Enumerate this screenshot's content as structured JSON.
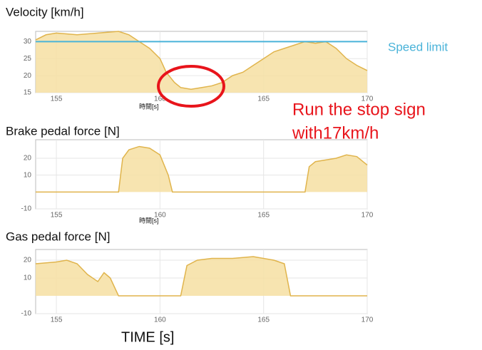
{
  "chart_data": [
    {
      "type": "area",
      "title": "Velocity  [km/h]",
      "x_label": "時間[s]",
      "xlim": [
        154,
        170
      ],
      "xticks": [
        155,
        160,
        165,
        170
      ],
      "ylim": [
        15,
        33
      ],
      "yticks": [
        15,
        20,
        25,
        30
      ],
      "grid": true,
      "series": [
        {
          "color": "#e0b44c",
          "x": [
            154,
            154.5,
            155,
            156,
            157,
            158,
            158.5,
            159,
            159.5,
            160,
            160.3,
            160.7,
            161,
            161.5,
            162,
            162.5,
            163,
            163.5,
            164,
            164.5,
            165,
            165.5,
            166,
            166.5,
            167,
            167.5,
            168,
            168.5,
            169,
            169.5,
            170
          ],
          "values": [
            30.5,
            32,
            32.5,
            32,
            32.5,
            33,
            32,
            30,
            28,
            25,
            21,
            18,
            16.5,
            16,
            16.5,
            17,
            18,
            20,
            21,
            23,
            25,
            27,
            28,
            29,
            30,
            29.5,
            30,
            28,
            25,
            23,
            21.5
          ]
        }
      ],
      "reference_line": {
        "value": 30,
        "label": "Speed limit",
        "color": "#4ab3d9"
      },
      "annotations": [
        "Run the stop sign",
        "with17km/h"
      ]
    },
    {
      "type": "area",
      "title": "Brake pedal force  [N]",
      "x_label": "時間[s]",
      "xlim": [
        154,
        170
      ],
      "xticks": [
        155,
        160,
        165,
        170
      ],
      "ylim": [
        -10,
        31
      ],
      "yticks": [
        -10,
        10,
        20
      ],
      "grid": true,
      "series": [
        {
          "color": "#e0b44c",
          "x": [
            154,
            158,
            158.2,
            158.5,
            159,
            159.5,
            160,
            160.4,
            160.6,
            167,
            167.2,
            167.5,
            168,
            168.5,
            169,
            169.5,
            170
          ],
          "values": [
            0,
            0,
            20,
            25,
            27,
            26,
            22,
            10,
            0,
            0,
            15,
            18,
            19,
            20,
            22,
            21,
            16
          ]
        }
      ]
    },
    {
      "type": "area",
      "title": "Gas pedal force  [N]",
      "x_label": "TIME [s]",
      "xlim": [
        154,
        170
      ],
      "xticks": [
        155,
        160,
        165,
        170
      ],
      "ylim": [
        -10,
        26
      ],
      "yticks": [
        -10,
        10,
        20
      ],
      "grid": true,
      "series": [
        {
          "color": "#e0b44c",
          "x": [
            154,
            155,
            155.5,
            156,
            156.5,
            157,
            157.3,
            157.6,
            158,
            161,
            161.3,
            161.8,
            162.5,
            163.5,
            164.5,
            165.5,
            166,
            166.3,
            170
          ],
          "values": [
            18,
            19,
            20,
            18,
            12,
            8,
            13,
            10,
            0,
            0,
            17,
            20,
            21,
            21,
            22,
            20,
            18,
            0,
            0
          ]
        }
      ]
    }
  ]
}
